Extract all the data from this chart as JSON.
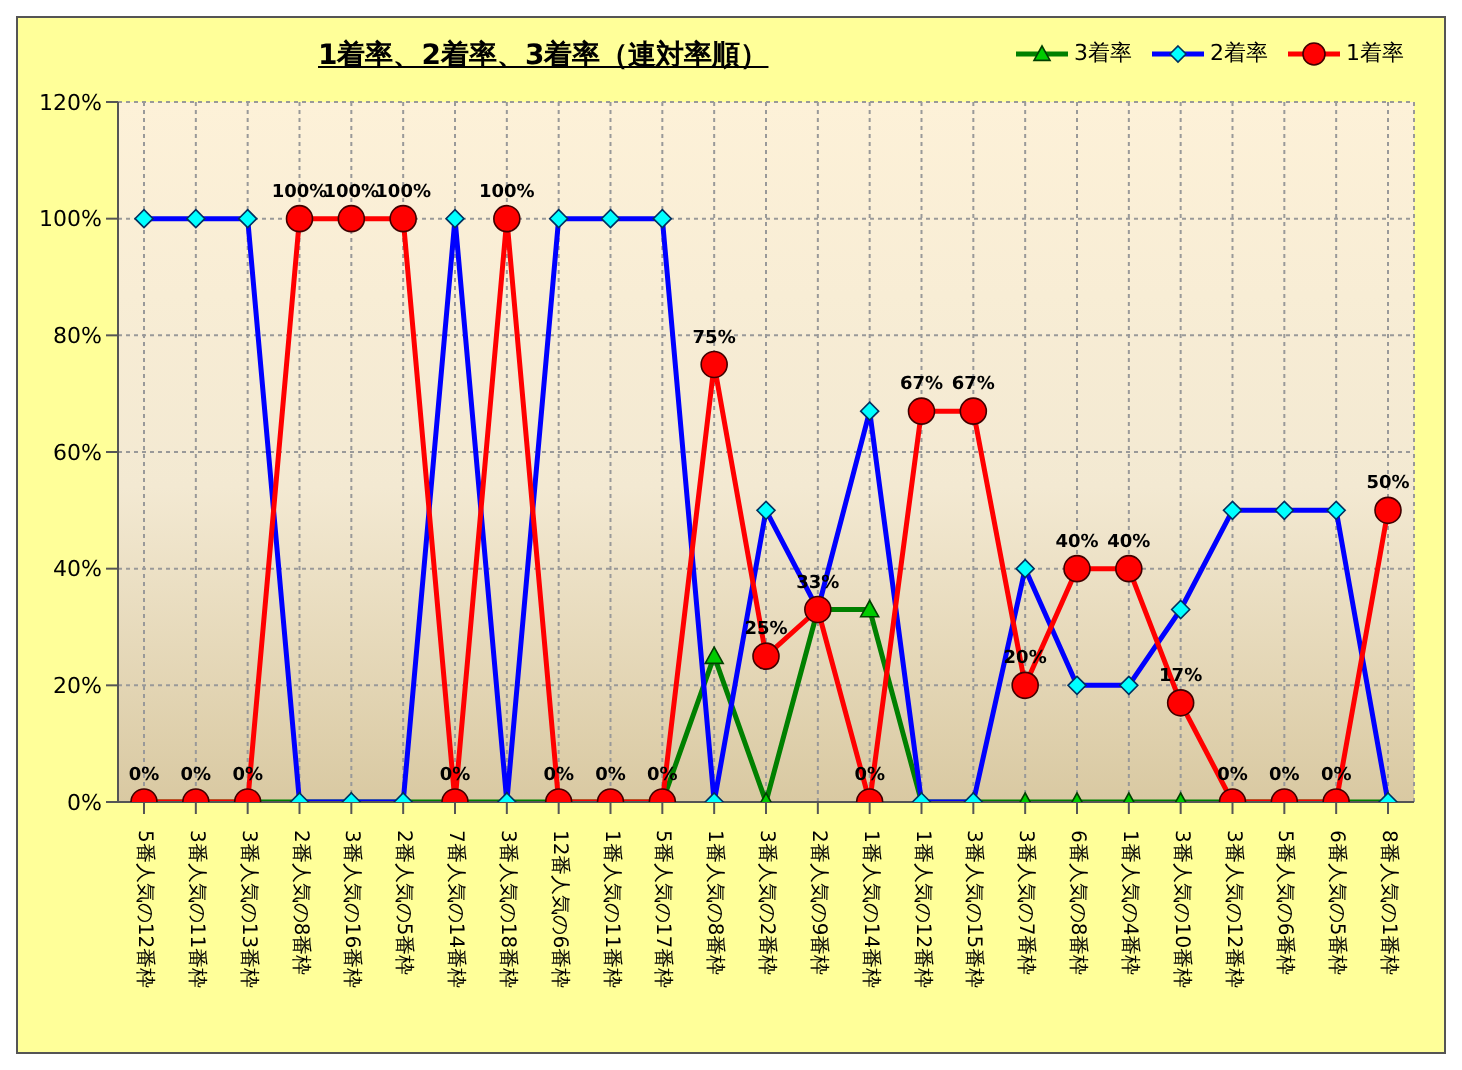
{
  "chart_data": {
    "type": "line",
    "title": "1着率、2着率、3着率（連対率順）",
    "categories": [
      "5番人気の12番枠",
      "3番人気の11番枠",
      "3番人気の13番枠",
      "2番人気の8番枠",
      "3番人気の16番枠",
      "2番人気の5番枠",
      "7番人気の14番枠",
      "3番人気の18番枠",
      "12番人気の6番枠",
      "1番人気の11番枠",
      "5番人気の17番枠",
      "1番人気の8番枠",
      "3番人気の2番枠",
      "2番人気の9番枠",
      "1番人気の14番枠",
      "1番人気の12番枠",
      "3番人気の15番枠",
      "3番人気の7番枠",
      "6番人気の8番枠",
      "1番人気の4番枠",
      "3番人気の10番枠",
      "3番人気の12番枠",
      "5番人気の6番枠",
      "6番人気の5番枠",
      "8番人気の1番枠"
    ],
    "series": [
      {
        "name": "3着率",
        "color": "#008000",
        "marker": "triangle",
        "values": [
          0,
          0,
          0,
          0,
          0,
          0,
          0,
          0,
          0,
          0,
          0,
          25,
          0,
          33,
          33,
          0,
          0,
          0,
          0,
          0,
          0,
          0,
          0,
          0,
          0
        ]
      },
      {
        "name": "2着率",
        "color": "#0000ff",
        "marker": "diamond",
        "values": [
          100,
          100,
          100,
          0,
          0,
          0,
          100,
          0,
          100,
          100,
          100,
          0,
          50,
          33,
          67,
          0,
          0,
          40,
          20,
          20,
          33,
          50,
          50,
          50,
          0
        ]
      },
      {
        "name": "1着率",
        "color": "#ff0000",
        "marker": "circle",
        "values": [
          0,
          0,
          0,
          100,
          100,
          100,
          0,
          100,
          0,
          0,
          0,
          75,
          25,
          33,
          0,
          67,
          67,
          20,
          40,
          40,
          17,
          0,
          0,
          0,
          50
        ],
        "value_labels": [
          "0%",
          "0%",
          "0%",
          "100%",
          "100%",
          "100%",
          "0%",
          "100%",
          "0%",
          "0%",
          "0%",
          "75%",
          "25%",
          "33%",
          "0%",
          "67%",
          "67%",
          "20%",
          "40%",
          "40%",
          "17%",
          "0%",
          "0%",
          "0%",
          "50%"
        ]
      }
    ],
    "ylim": [
      0,
      120
    ],
    "yticks": [
      {
        "value": 0,
        "label": "0%"
      },
      {
        "value": 20,
        "label": "20%"
      },
      {
        "value": 40,
        "label": "40%"
      },
      {
        "value": 60,
        "label": "60%"
      },
      {
        "value": 80,
        "label": "80%"
      },
      {
        "value": 100,
        "label": "100%"
      },
      {
        "value": 120,
        "label": "120%"
      }
    ],
    "grid": true,
    "legend": "top right"
  }
}
